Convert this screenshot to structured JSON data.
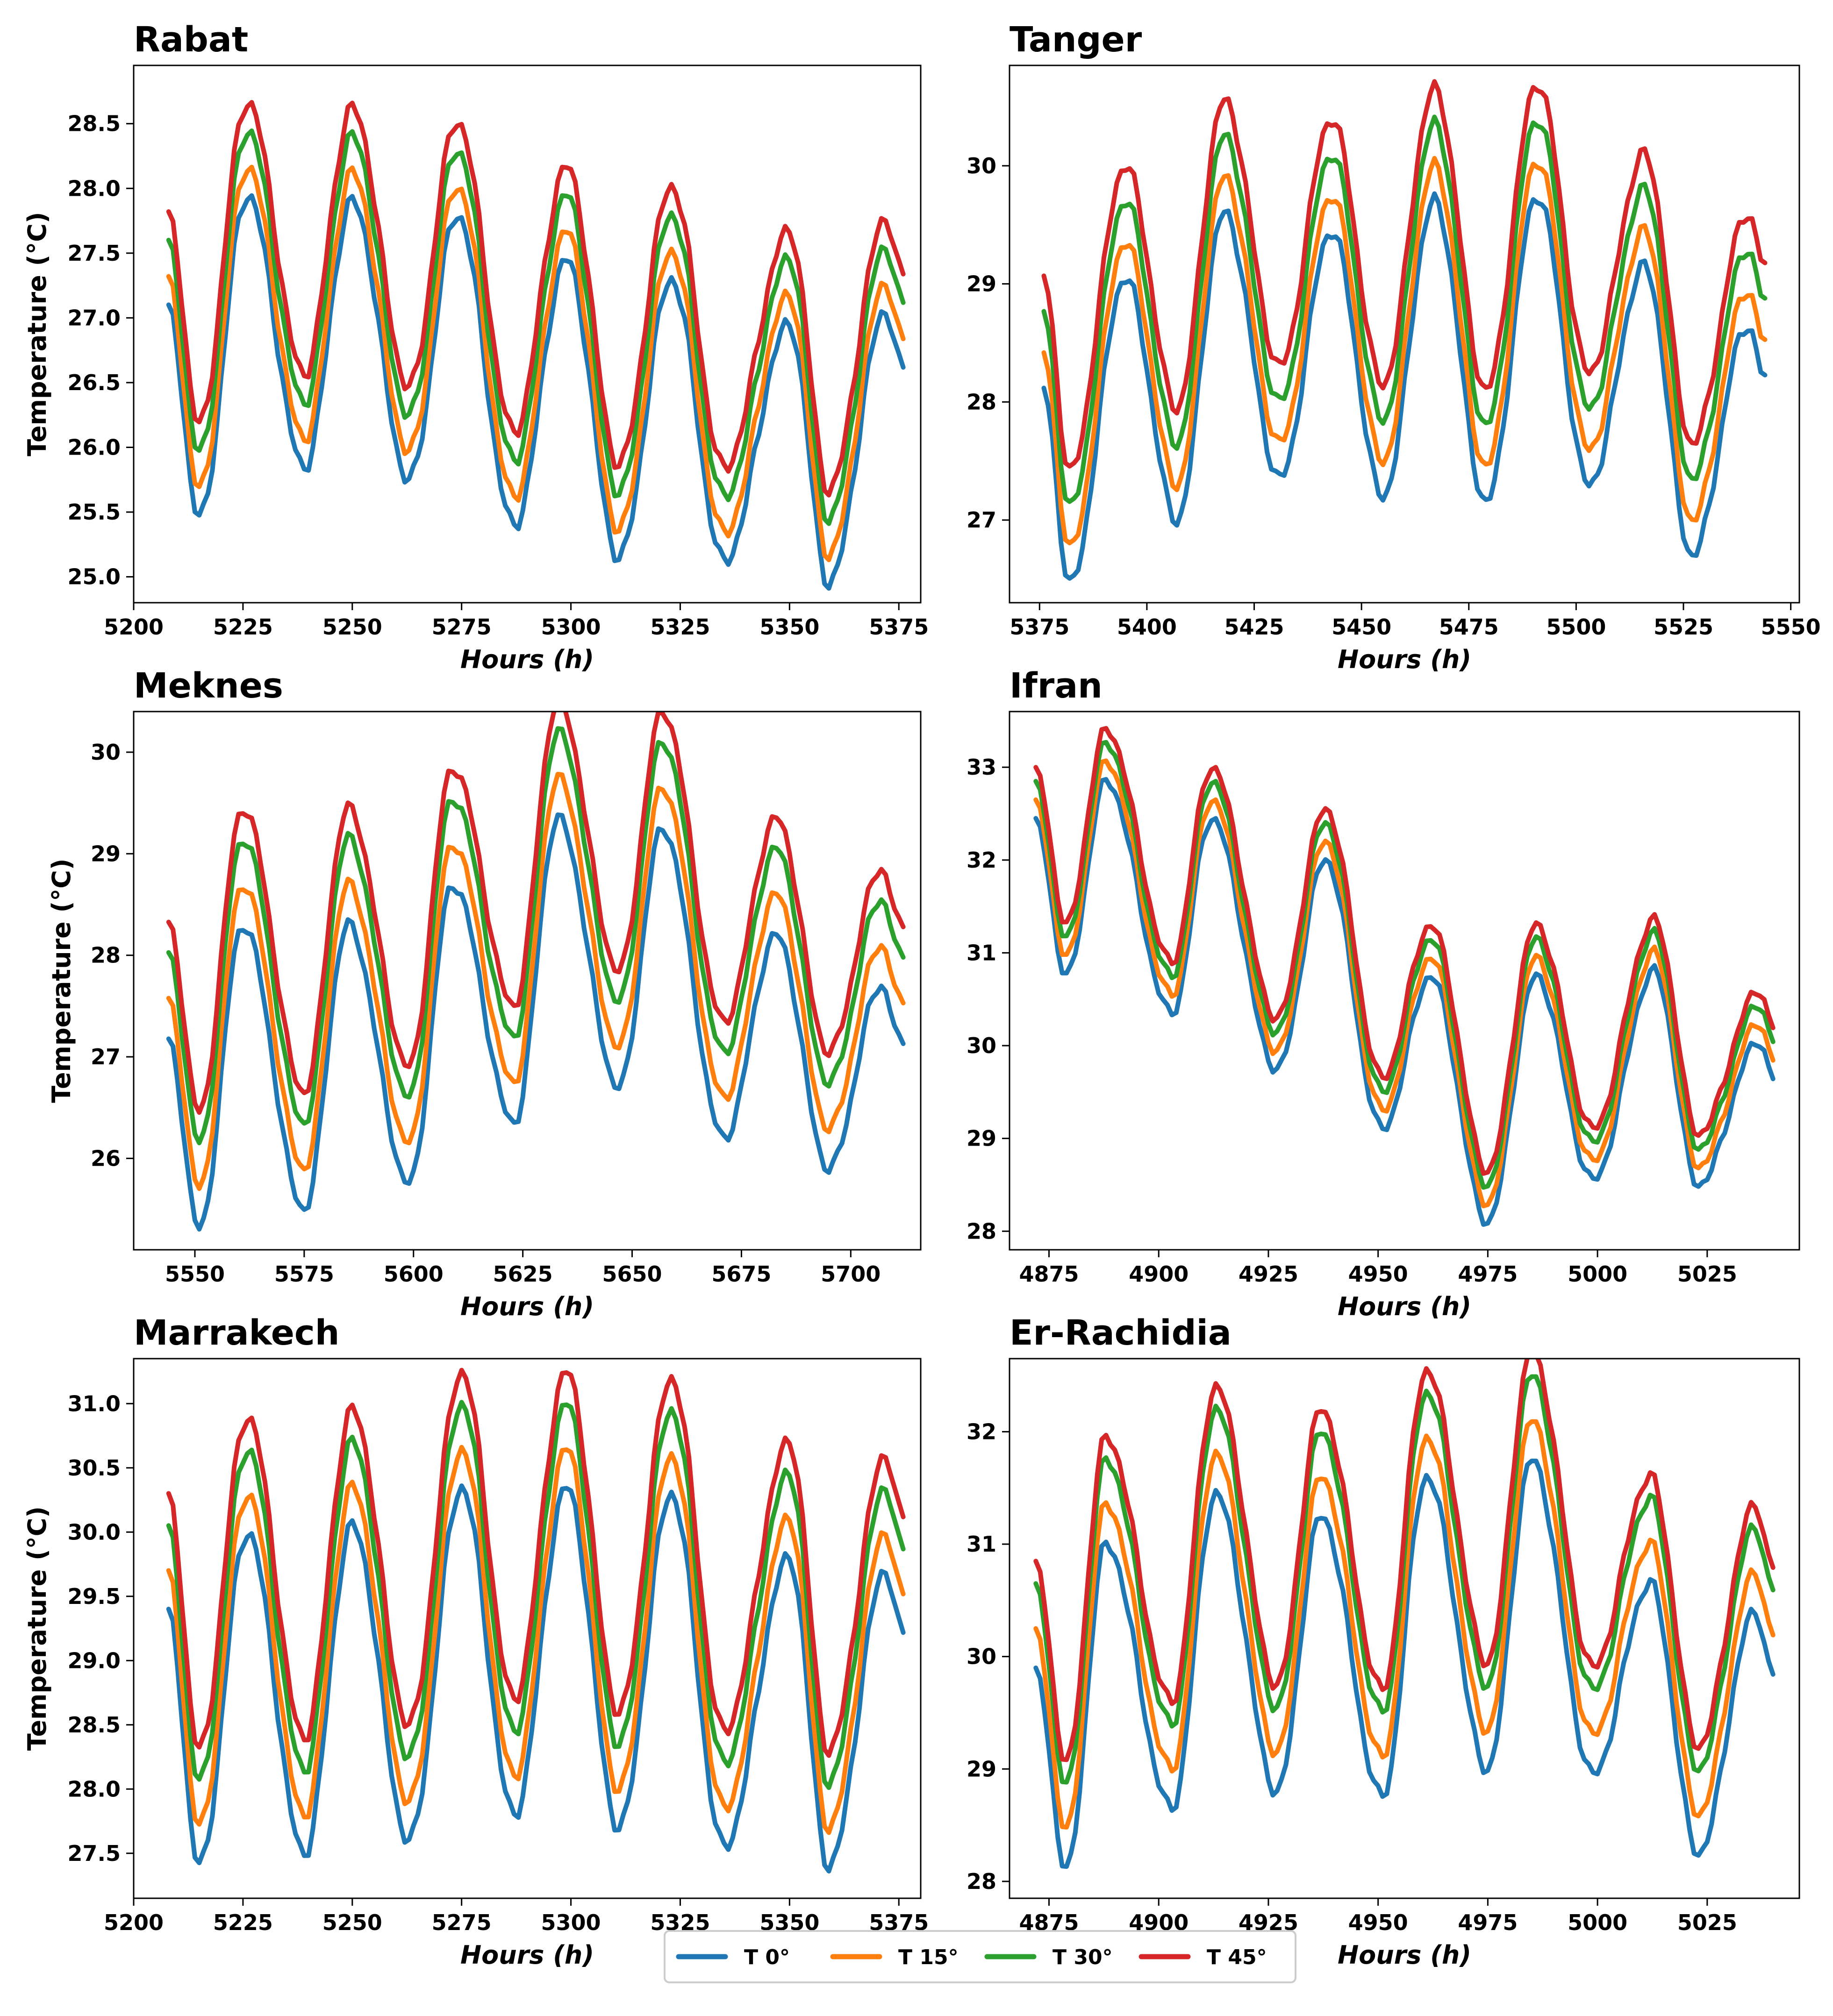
{
  "chart_data": [
    {
      "type": "line",
      "title": "Rabat",
      "xlabel": "Hours (h)",
      "ylabel": "Temperature (°C)",
      "xlim": [
        5200,
        5380
      ],
      "ylim": [
        24.8,
        28.95
      ],
      "xticks": [
        5200,
        5225,
        5250,
        5275,
        5300,
        5325,
        5350,
        5375
      ],
      "yticks": [
        25.0,
        25.5,
        26.0,
        26.5,
        27.0,
        27.5,
        28.0,
        28.5
      ],
      "ytick_decimals": 1,
      "cycle_start": 5208,
      "cycle_end": 5376,
      "peaks": [
        [
          5226,
          27.95
        ],
        [
          5250,
          27.9
        ],
        [
          5274,
          27.8
        ],
        [
          5299,
          27.45
        ],
        [
          5323,
          27.3
        ],
        [
          5350,
          26.95
        ],
        [
          5372,
          27.05
        ]
      ],
      "troughs": [
        [
          5208,
          27.05
        ],
        [
          5215,
          25.45
        ],
        [
          5239,
          25.85
        ],
        [
          5263,
          25.75
        ],
        [
          5287,
          25.4
        ],
        [
          5311,
          25.15
        ],
        [
          5335,
          25.12
        ],
        [
          5359,
          24.95
        ],
        [
          5376,
          26.6
        ]
      ],
      "offsets": [
        0,
        0.22,
        0.5,
        0.72
      ]
    },
    {
      "type": "line",
      "title": "Tanger",
      "xlabel": "Hours (h)",
      "ylabel": "",
      "xlim": [
        5368,
        5552
      ],
      "ylim": [
        26.3,
        30.85
      ],
      "xticks": [
        5375,
        5400,
        5425,
        5450,
        5475,
        5500,
        5525,
        5550
      ],
      "yticks": [
        27,
        28,
        29,
        30
      ],
      "ytick_decimals": 0,
      "cycle_start": 5376,
      "cycle_end": 5544,
      "peaks": [
        [
          5395,
          29.05
        ],
        [
          5418,
          29.6
        ],
        [
          5443,
          29.45
        ],
        [
          5467,
          29.7
        ],
        [
          5491,
          29.75
        ],
        [
          5516,
          29.15
        ],
        [
          5540,
          28.65
        ]
      ],
      "troughs": [
        [
          5376,
          28.1
        ],
        [
          5382,
          26.45
        ],
        [
          5407,
          27.0
        ],
        [
          5431,
          27.35
        ],
        [
          5455,
          27.2
        ],
        [
          5479,
          27.15
        ],
        [
          5503,
          27.3
        ],
        [
          5527,
          26.7
        ],
        [
          5544,
          28.2
        ]
      ],
      "offsets": [
        0,
        0.3,
        0.65,
        0.95
      ]
    },
    {
      "type": "line",
      "title": "Meknes",
      "xlabel": "Hours (h)",
      "ylabel": "Temperature (°C)",
      "xlim": [
        5536,
        5716
      ],
      "ylim": [
        25.1,
        30.4
      ],
      "xticks": [
        5550,
        5575,
        5600,
        5625,
        5650,
        5675,
        5700
      ],
      "yticks": [
        26,
        27,
        28,
        29,
        30
      ],
      "ytick_decimals": 0,
      "cycle_start": 5544,
      "cycle_end": 5712,
      "peaks": [
        [
          5561,
          28.3
        ],
        [
          5585,
          28.3
        ],
        [
          5609,
          28.7
        ],
        [
          5633,
          29.35
        ],
        [
          5657,
          29.25
        ],
        [
          5683,
          28.2
        ],
        [
          5707,
          27.7
        ]
      ],
      "troughs": [
        [
          5544,
          27.15
        ],
        [
          5551,
          25.3
        ],
        [
          5575,
          25.5
        ],
        [
          5599,
          25.75
        ],
        [
          5623,
          26.35
        ],
        [
          5647,
          26.7
        ],
        [
          5671,
          26.2
        ],
        [
          5695,
          25.9
        ],
        [
          5712,
          27.1
        ]
      ],
      "offsets": [
        0,
        0.4,
        0.85,
        1.15
      ]
    },
    {
      "type": "line",
      "title": "Ifran",
      "xlabel": "Hours (h)",
      "ylabel": "",
      "xlim": [
        4866,
        5046
      ],
      "ylim": [
        27.8,
        33.6
      ],
      "xticks": [
        4875,
        4900,
        4925,
        4950,
        4975,
        5000,
        5025
      ],
      "yticks": [
        28,
        29,
        30,
        31,
        32,
        33
      ],
      "ytick_decimals": 0,
      "cycle_start": 4872,
      "cycle_end": 5040,
      "peaks": [
        [
          4888,
          32.85
        ],
        [
          4912,
          32.45
        ],
        [
          4938,
          32.0
        ],
        [
          4962,
          30.75
        ],
        [
          4986,
          30.75
        ],
        [
          5013,
          30.8
        ],
        [
          5037,
          30.05
        ]
      ],
      "troughs": [
        [
          4872,
          32.4
        ],
        [
          4879,
          30.75
        ],
        [
          4903,
          30.35
        ],
        [
          4927,
          29.75
        ],
        [
          4951,
          29.1
        ],
        [
          4975,
          28.1
        ],
        [
          4999,
          28.55
        ],
        [
          5023,
          28.5
        ],
        [
          5040,
          29.65
        ]
      ],
      "offsets": [
        0,
        0.2,
        0.4,
        0.55
      ]
    },
    {
      "type": "line",
      "title": "Marrakech",
      "xlabel": "Hours (h)",
      "ylabel": "Temperature (°C)",
      "xlim": [
        5200,
        5380
      ],
      "ylim": [
        27.15,
        31.35
      ],
      "xticks": [
        5200,
        5225,
        5250,
        5275,
        5300,
        5325,
        5350,
        5375
      ],
      "yticks": [
        27.5,
        28.0,
        28.5,
        29.0,
        29.5,
        30.0,
        30.5,
        31.0
      ],
      "ytick_decimals": 1,
      "cycle_start": 5208,
      "cycle_end": 5376,
      "peaks": [
        [
          5226,
          30.0
        ],
        [
          5250,
          30.05
        ],
        [
          5275,
          30.35
        ],
        [
          5299,
          30.35
        ],
        [
          5323,
          30.3
        ],
        [
          5350,
          29.8
        ],
        [
          5372,
          29.7
        ]
      ],
      "troughs": [
        [
          5208,
          29.35
        ],
        [
          5215,
          27.4
        ],
        [
          5239,
          27.5
        ],
        [
          5263,
          27.6
        ],
        [
          5287,
          27.8
        ],
        [
          5311,
          27.7
        ],
        [
          5335,
          27.55
        ],
        [
          5359,
          27.4
        ],
        [
          5376,
          29.2
        ]
      ],
      "offsets": [
        0,
        0.3,
        0.65,
        0.9
      ]
    },
    {
      "type": "line",
      "title": "Er-Rachidia",
      "xlabel": "Hours (h)",
      "ylabel": "",
      "xlim": [
        4866,
        5046
      ],
      "ylim": [
        27.85,
        32.65
      ],
      "xticks": [
        4875,
        4900,
        4925,
        4950,
        4975,
        5000,
        5025
      ],
      "yticks": [
        28,
        29,
        30,
        31,
        32
      ],
      "ytick_decimals": 0,
      "cycle_start": 4872,
      "cycle_end": 5040,
      "peaks": [
        [
          4888,
          31.0
        ],
        [
          4913,
          31.45
        ],
        [
          4937,
          31.25
        ],
        [
          4961,
          31.6
        ],
        [
          4985,
          31.75
        ],
        [
          5012,
          30.65
        ],
        [
          5036,
          30.4
        ]
      ],
      "troughs": [
        [
          4872,
          29.85
        ],
        [
          4879,
          28.1
        ],
        [
          4903,
          28.65
        ],
        [
          4927,
          28.8
        ],
        [
          4951,
          28.75
        ],
        [
          4975,
          29.0
        ],
        [
          4999,
          28.95
        ],
        [
          5023,
          28.25
        ],
        [
          5040,
          29.85
        ]
      ],
      "offsets": [
        0,
        0.35,
        0.75,
        0.95
      ]
    }
  ],
  "legend": {
    "series": [
      {
        "name": "T 0°",
        "color": "#1f77b4"
      },
      {
        "name": "T 15°",
        "color": "#ff7f0e"
      },
      {
        "name": "T 30°",
        "color": "#2ca02c"
      },
      {
        "name": "T 45°",
        "color": "#d62728"
      }
    ]
  }
}
